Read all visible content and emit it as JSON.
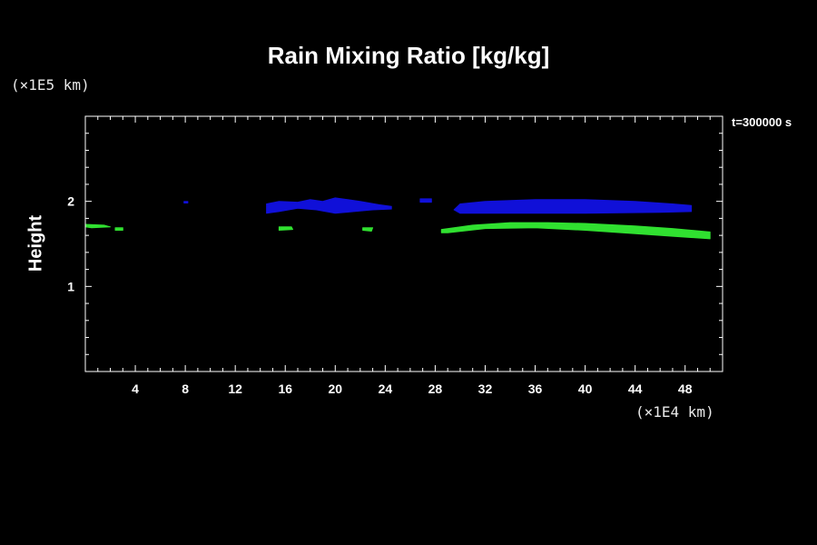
{
  "chart_data": {
    "type": "heatmap",
    "title": "Rain Mixing Ratio [kg/kg]",
    "xlabel": "",
    "ylabel": "Height",
    "x_unit": "(×1E4 km)",
    "y_unit": "(×1E5 km)",
    "annotation": "t=300000 s",
    "xlim": [
      0,
      51
    ],
    "ylim": [
      0,
      3
    ],
    "x_ticks": [
      4,
      8,
      12,
      16,
      20,
      24,
      28,
      32,
      36,
      40,
      44,
      48
    ],
    "y_ticks": [
      1,
      2
    ],
    "colors": {
      "upper_band": "#1010d8",
      "lower_band": "#30e030"
    },
    "bands": [
      {
        "color": "#1010d8",
        "outline": [
          [
            14.5,
            1.97
          ],
          [
            15.5,
            2.0
          ],
          [
            17,
            1.99
          ],
          [
            18,
            2.02
          ],
          [
            19,
            2.0
          ],
          [
            20,
            2.04
          ],
          [
            21,
            2.02
          ],
          [
            22,
            2.0
          ],
          [
            23.5,
            1.96
          ],
          [
            24.5,
            1.94
          ],
          [
            24.5,
            1.91
          ],
          [
            23,
            1.9
          ],
          [
            21.5,
            1.88
          ],
          [
            20,
            1.86
          ],
          [
            18.5,
            1.9
          ],
          [
            17,
            1.92
          ],
          [
            15.5,
            1.88
          ],
          [
            14.5,
            1.86
          ]
        ]
      },
      {
        "color": "#1010d8",
        "outline": [
          [
            30,
            1.97
          ],
          [
            32,
            2.0
          ],
          [
            36,
            2.02
          ],
          [
            40,
            2.02
          ],
          [
            44,
            2.0
          ],
          [
            47,
            1.97
          ],
          [
            48.5,
            1.95
          ],
          [
            48.5,
            1.88
          ],
          [
            46,
            1.87
          ],
          [
            40,
            1.86
          ],
          [
            34,
            1.86
          ],
          [
            30,
            1.86
          ],
          [
            29.5,
            1.9
          ]
        ]
      },
      {
        "color": "#1010d8",
        "outline": [
          [
            26.8,
            2.03
          ],
          [
            27.7,
            2.03
          ],
          [
            27.7,
            1.99
          ],
          [
            26.8,
            1.99
          ]
        ]
      },
      {
        "color": "#1010d8",
        "outline": [
          [
            7.9,
            2.0
          ],
          [
            8.2,
            2.0
          ],
          [
            8.2,
            1.98
          ],
          [
            7.9,
            1.98
          ]
        ]
      },
      {
        "color": "#30e030",
        "outline": [
          [
            28.5,
            1.67
          ],
          [
            31,
            1.72
          ],
          [
            34,
            1.75
          ],
          [
            37,
            1.75
          ],
          [
            40,
            1.74
          ],
          [
            44,
            1.71
          ],
          [
            47,
            1.68
          ],
          [
            50,
            1.64
          ],
          [
            50,
            1.56
          ],
          [
            47,
            1.59
          ],
          [
            44,
            1.62
          ],
          [
            40,
            1.66
          ],
          [
            36,
            1.69
          ],
          [
            32,
            1.68
          ],
          [
            29,
            1.63
          ],
          [
            28.5,
            1.63
          ]
        ]
      },
      {
        "color": "#30e030",
        "outline": [
          [
            0,
            1.73
          ],
          [
            1.5,
            1.72
          ],
          [
            2,
            1.7
          ],
          [
            0.5,
            1.69
          ],
          [
            0,
            1.7
          ]
        ]
      },
      {
        "color": "#30e030",
        "outline": [
          [
            2.4,
            1.69
          ],
          [
            3.0,
            1.69
          ],
          [
            3.0,
            1.66
          ],
          [
            2.4,
            1.66
          ]
        ]
      },
      {
        "color": "#30e030",
        "outline": [
          [
            15.5,
            1.7
          ],
          [
            16.5,
            1.7
          ],
          [
            16.6,
            1.67
          ],
          [
            15.5,
            1.66
          ]
        ]
      },
      {
        "color": "#30e030",
        "outline": [
          [
            22.2,
            1.69
          ],
          [
            23.0,
            1.69
          ],
          [
            22.9,
            1.65
          ],
          [
            22.2,
            1.66
          ]
        ]
      }
    ]
  }
}
